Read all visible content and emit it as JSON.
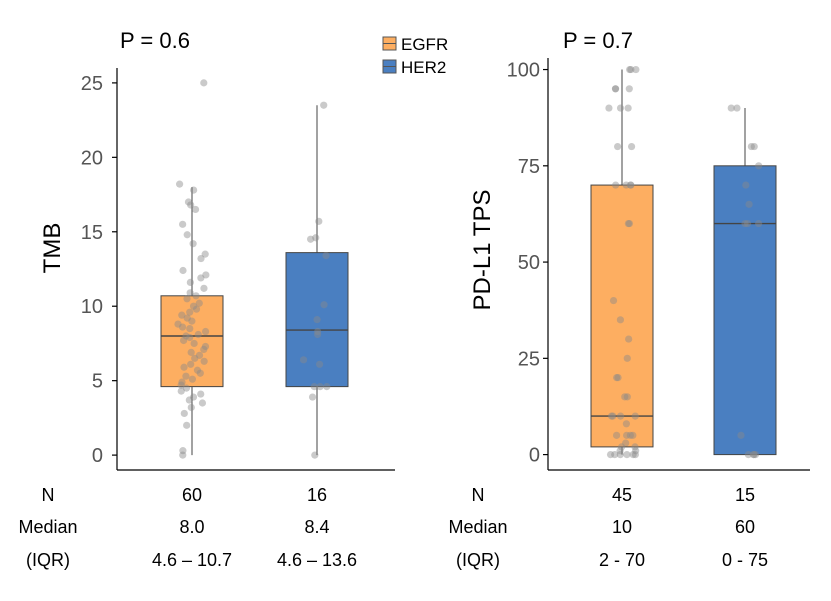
{
  "legend": {
    "placement": "top-center",
    "items": [
      {
        "label": "EGFR",
        "color": "#FDAE61"
      },
      {
        "label": "HER2",
        "color": "#4A7FC1"
      }
    ]
  },
  "table": {
    "row_labels": [
      "N",
      "Median",
      "(IQR)"
    ]
  },
  "chart_data": [
    {
      "type": "box",
      "pvalue": "P = 0.6",
      "ylabel": "TMB",
      "xlabel": "",
      "ylim": [
        -1,
        26
      ],
      "yticks": [
        0,
        5,
        10,
        15,
        20,
        25
      ],
      "grid": false,
      "categories": [
        "EGFR",
        "HER2"
      ],
      "series": [
        {
          "name": "EGFR",
          "color": "#FDAE61",
          "n": "60",
          "median_label": "8.0",
          "iqr_label": "4.6 – 10.7",
          "box": {
            "min": 0,
            "q1": 4.6,
            "median": 8.0,
            "q3": 10.7,
            "max": 18
          },
          "points": [
            25.0,
            18.2,
            17.8,
            17.0,
            16.8,
            16.5,
            15.5,
            14.8,
            14.2,
            13.5,
            13.2,
            12.4,
            12.1,
            11.9,
            11.6,
            11.2,
            10.9,
            10.7,
            10.5,
            10.2,
            10.0,
            9.8,
            9.6,
            9.4,
            9.2,
            9.0,
            8.8,
            8.6,
            8.5,
            8.3,
            8.1,
            8.0,
            7.9,
            7.7,
            7.5,
            7.3,
            7.1,
            6.9,
            6.7,
            6.5,
            6.3,
            6.1,
            5.9,
            5.7,
            5.5,
            5.3,
            5.1,
            4.9,
            4.7,
            4.5,
            4.3,
            4.1,
            3.9,
            3.7,
            3.5,
            3.2,
            2.8,
            2.0,
            0.3,
            0.0
          ]
        },
        {
          "name": "HER2",
          "color": "#4A7FC1",
          "n": "16",
          "median_label": "8.4",
          "iqr_label": "4.6 – 13.6",
          "box": {
            "min": 0,
            "q1": 4.6,
            "median": 8.4,
            "q3": 13.6,
            "max": 23.5
          },
          "points": [
            23.5,
            15.7,
            14.6,
            14.5,
            13.4,
            10.1,
            9.1,
            8.3,
            8.1,
            6.4,
            6.1,
            4.6,
            4.6,
            4.6,
            3.9,
            0.0
          ]
        }
      ]
    },
    {
      "type": "box",
      "pvalue": "P = 0.7",
      "ylabel": "PD-L1 TPS",
      "xlabel": "",
      "ylim": [
        -4,
        103
      ],
      "yticks": [
        0,
        25,
        50,
        75,
        100
      ],
      "grid": false,
      "categories": [
        "EGFR",
        "HER2"
      ],
      "series": [
        {
          "name": "EGFR",
          "color": "#FDAE61",
          "n": "45",
          "median_label": "10",
          "iqr_label": "2 - 70",
          "box": {
            "min": 0,
            "q1": 2,
            "median": 10,
            "q3": 70,
            "max": 100
          },
          "points": [
            100,
            100,
            100,
            95,
            95,
            95,
            90,
            90,
            90,
            80,
            80,
            70,
            70,
            70,
            70,
            60,
            60,
            40,
            35,
            30,
            25,
            20,
            20,
            15,
            15,
            10,
            10,
            10,
            10,
            8,
            5,
            5,
            5,
            5,
            3,
            2,
            2,
            1,
            1,
            0,
            0,
            0,
            0,
            0,
            0
          ]
        },
        {
          "name": "HER2",
          "color": "#4A7FC1",
          "n": "15",
          "median_label": "60",
          "iqr_label": "0 - 75",
          "box": {
            "min": 0,
            "q1": 0,
            "median": 60,
            "q3": 75,
            "max": 90
          },
          "points": [
            90,
            90,
            80,
            80,
            75,
            70,
            65,
            60,
            60,
            60,
            5,
            0,
            0,
            0,
            0
          ]
        }
      ]
    }
  ]
}
